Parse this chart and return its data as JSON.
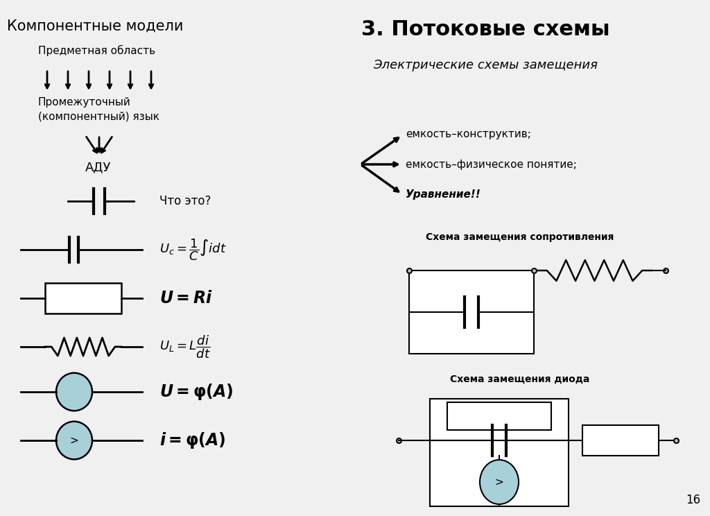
{
  "bg_color": "#f0f0f0",
  "title_left": "Компонентные модели",
  "title_right": "3. Потоковые схемы",
  "subtitle_right": "Электрические схемы замещения",
  "arrow_items_right": [
    "емкость–конструктив;",
    "емкость–физическое понятие;",
    "Уравнение!!"
  ],
  "what_is_this": "Что это?",
  "circuit_label_1": "Схема замещения сопротивления",
  "circuit_label_2": "Схема замещения диода",
  "page_number": "16",
  "light_blue": "#a8d0d8",
  "black": "#000000",
  "white": "#ffffff"
}
